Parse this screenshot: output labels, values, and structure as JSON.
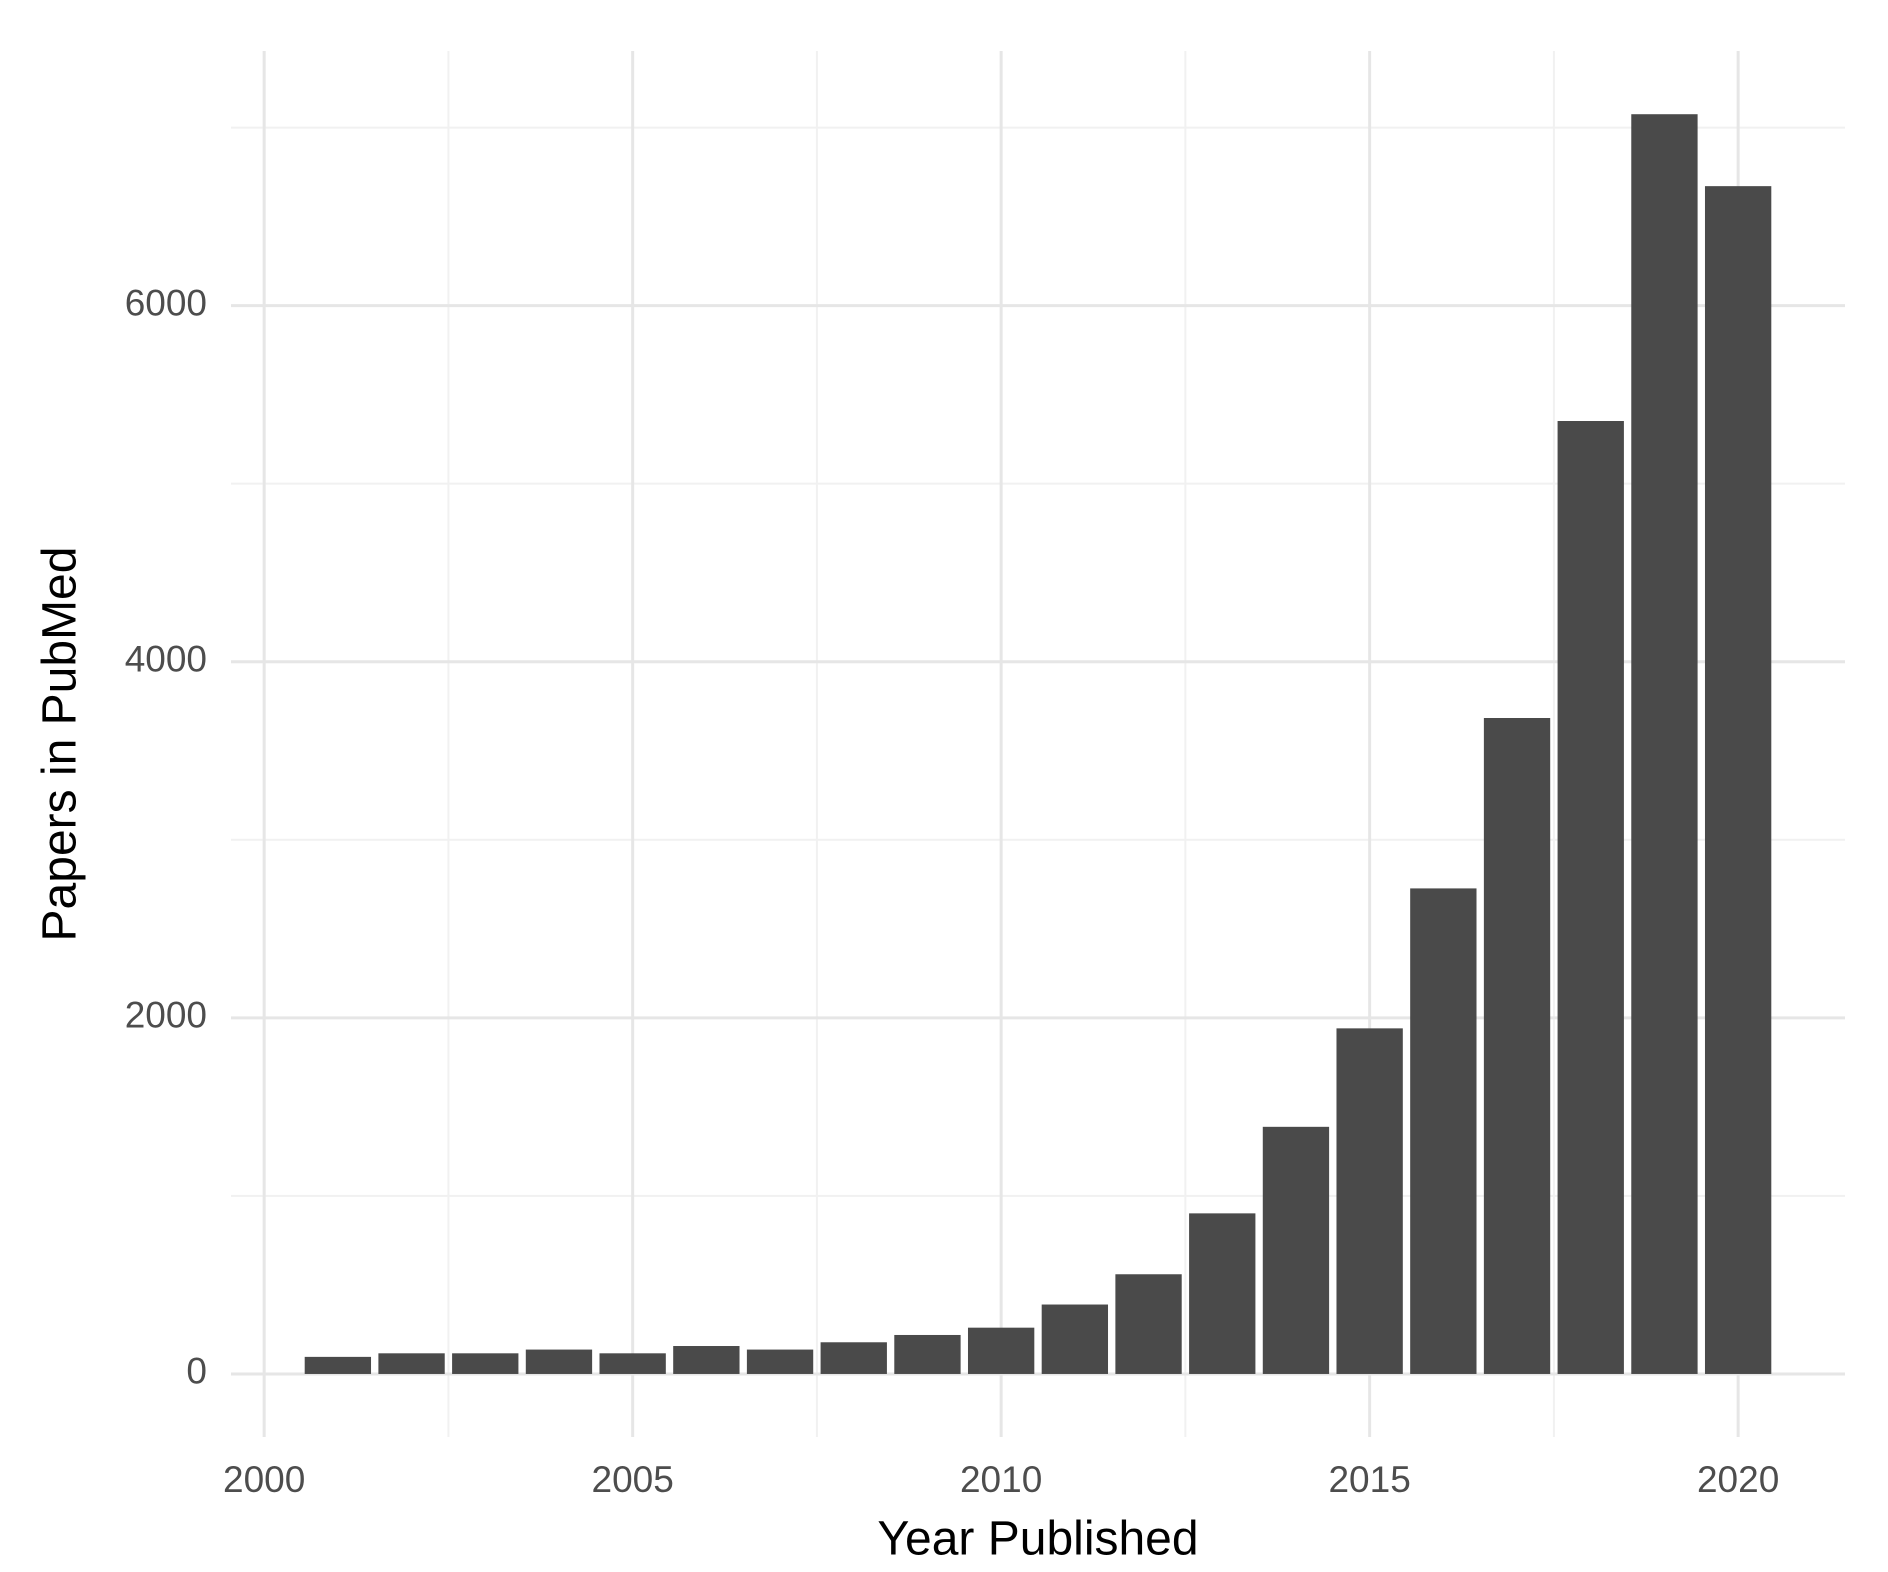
{
  "chart_data": {
    "type": "bar",
    "x_label": "Year Published",
    "y_label": "Papers in PubMed",
    "x": [
      2001,
      2002,
      2003,
      2004,
      2005,
      2006,
      2007,
      2008,
      2009,
      2010,
      2011,
      2012,
      2013,
      2014,
      2015,
      2016,
      2017,
      2018,
      2019,
      2020
    ],
    "values": [
      96,
      116,
      116,
      137,
      116,
      157,
      137,
      178,
      219,
      260,
      390,
      560,
      902,
      1388,
      1941,
      2727,
      3684,
      5352,
      7075,
      6671
    ],
    "color": "#4a4a4a",
    "xlim": [
      1999.55,
      2021.45
    ],
    "ylim": [
      -354,
      7430
    ],
    "xticks": [
      2000,
      2005,
      2010,
      2015,
      2020
    ],
    "yticks": [
      0,
      2000,
      4000,
      6000
    ],
    "minor_xticks": [
      2002.5,
      2007.5,
      2012.5,
      2017.5
    ],
    "minor_yticks": [
      1000,
      3000,
      5000,
      7000
    ],
    "grid": true
  }
}
